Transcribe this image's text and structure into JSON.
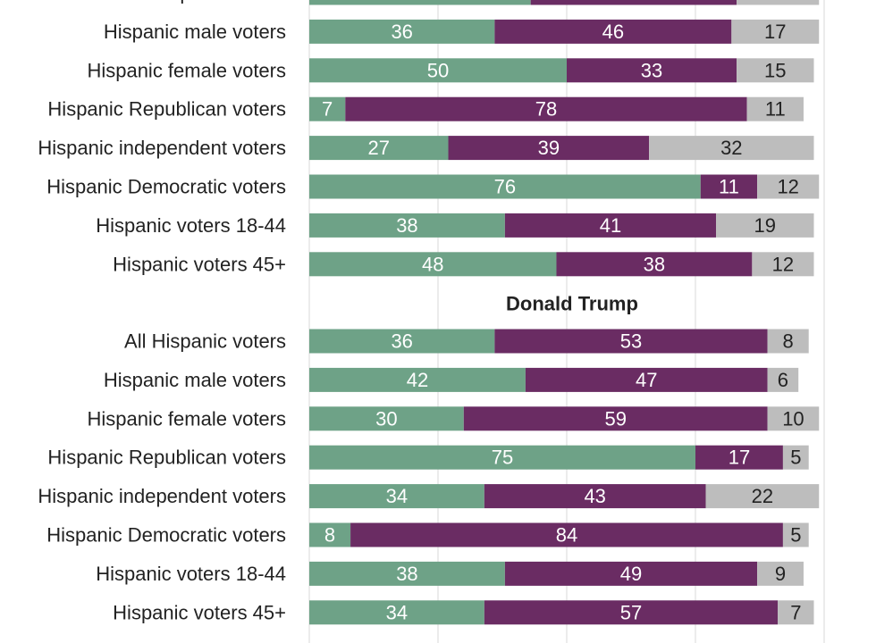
{
  "colors": {
    "favorable": "#6ea287",
    "unfavorable": "#6a2c63",
    "neither": "#bdbdbd",
    "gridline": "#d9d9d9"
  },
  "chart_data": [
    {
      "type": "bar",
      "orientation": "horizontal",
      "stacked": true,
      "title": "",
      "categories": [
        "All Hispanic voters",
        "Hispanic male voters",
        "Hispanic female voters",
        "Hispanic Republican voters",
        "Hispanic independent voters",
        "Hispanic Democratic voters",
        "Hispanic voters 18-44",
        "Hispanic voters 45+"
      ],
      "series": [
        {
          "color": "#6ea287",
          "values": [
            43,
            36,
            50,
            7,
            27,
            76,
            38,
            48
          ]
        },
        {
          "color": "#6a2c63",
          "values": [
            40,
            46,
            33,
            78,
            39,
            11,
            41,
            38
          ]
        },
        {
          "color": "#bdbdbd",
          "values": [
            16,
            17,
            15,
            11,
            32,
            12,
            19,
            12
          ]
        }
      ],
      "xlim": [
        0,
        100
      ],
      "grid": true,
      "legend": "none"
    },
    {
      "type": "bar",
      "orientation": "horizontal",
      "stacked": true,
      "title": "Donald Trump",
      "categories": [
        "All Hispanic voters",
        "Hispanic male voters",
        "Hispanic female voters",
        "Hispanic Republican voters",
        "Hispanic independent voters",
        "Hispanic Democratic voters",
        "Hispanic voters 18-44",
        "Hispanic voters 45+"
      ],
      "series": [
        {
          "color": "#6ea287",
          "values": [
            36,
            42,
            30,
            75,
            34,
            8,
            38,
            34
          ]
        },
        {
          "color": "#6a2c63",
          "values": [
            53,
            47,
            59,
            17,
            43,
            84,
            49,
            57
          ]
        },
        {
          "color": "#bdbdbd",
          "values": [
            8,
            6,
            10,
            5,
            22,
            5,
            9,
            7
          ]
        }
      ],
      "xlim": [
        0,
        100
      ],
      "grid": true,
      "legend": "none"
    }
  ]
}
